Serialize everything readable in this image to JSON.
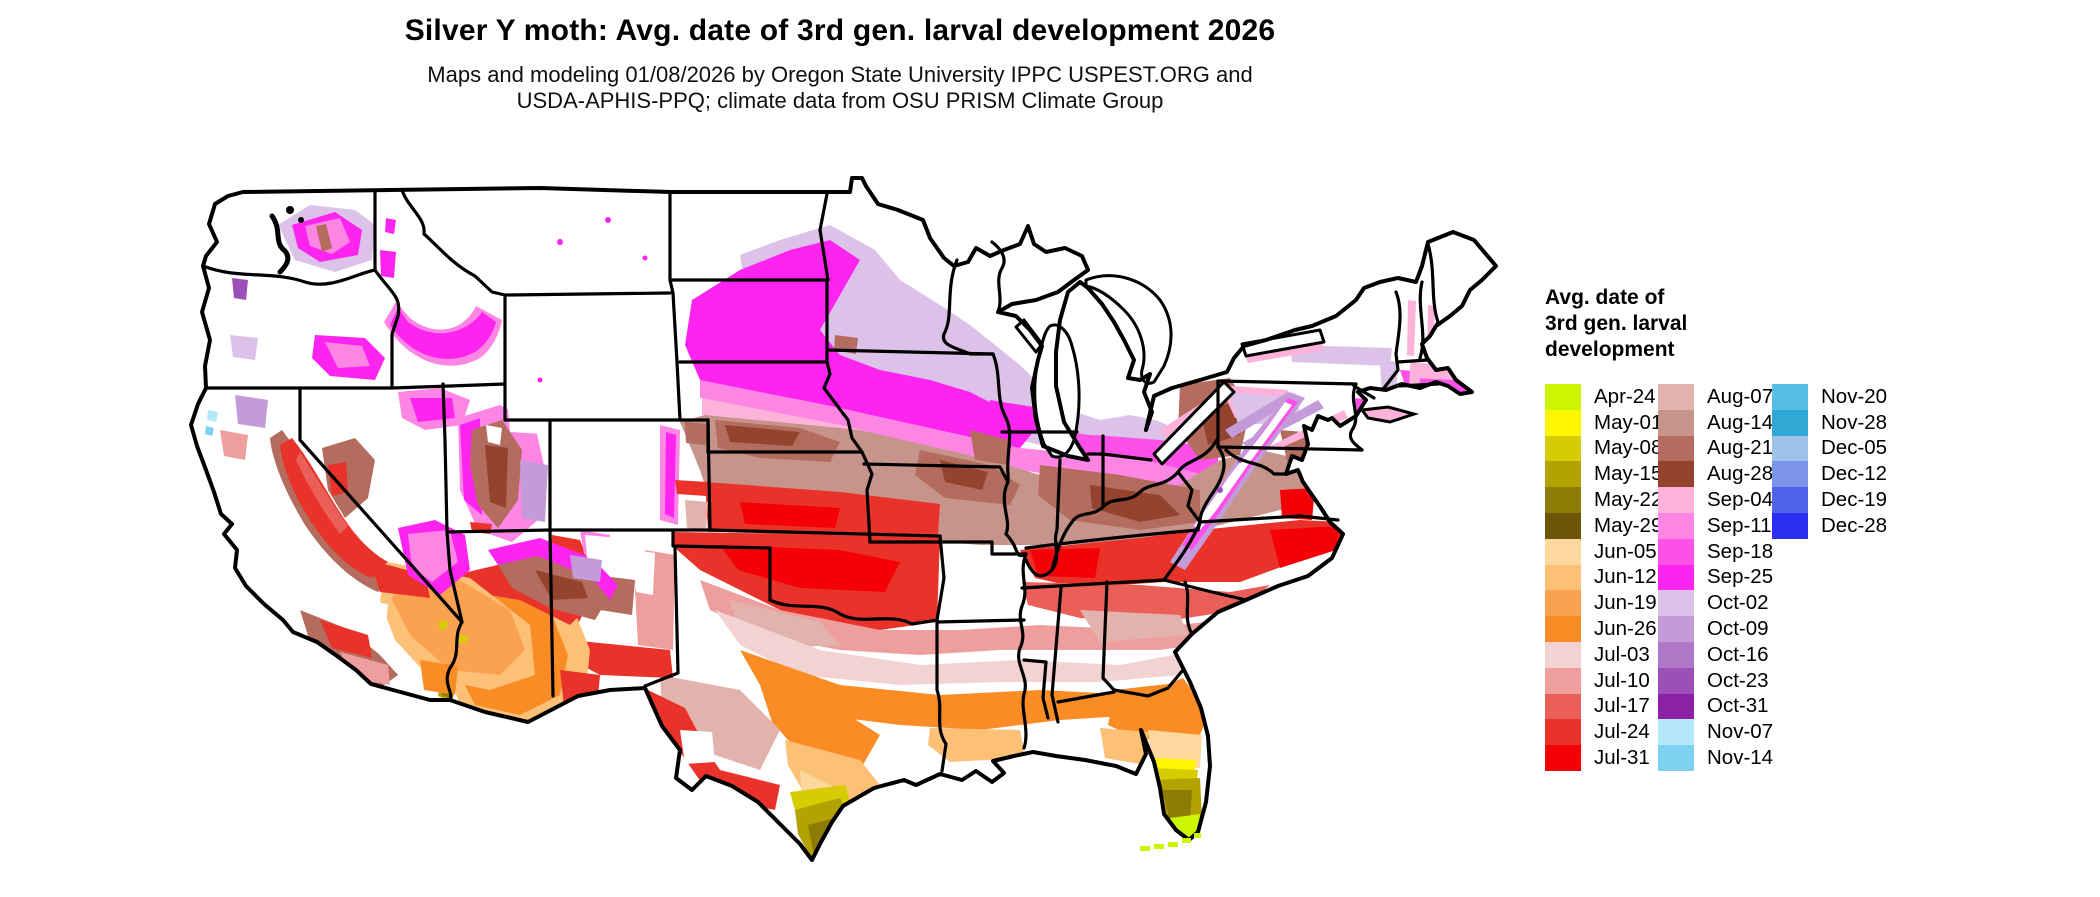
{
  "header": {
    "title": "Silver Y moth: Avg. date of 3rd gen. larval development 2026",
    "subtitle_line1": "Maps and modeling 01/08/2026 by Oregon State University IPPC USPEST.ORG and",
    "subtitle_line2": "USDA-APHIS-PPQ; climate data from OSU PRISM Climate Group"
  },
  "map": {
    "kind": "choropleth raster map",
    "region": "contiguous United States",
    "variable": "Avg. date of 3rd gen. larval development"
  },
  "legend": {
    "title_lines": [
      "Avg. date of",
      "3rd gen. larval",
      "development"
    ],
    "columns": [
      {
        "entries": [
          {
            "label": "Apr-24",
            "color": "#ccf501"
          },
          {
            "label": "May-01",
            "color": "#fdf601"
          },
          {
            "label": "May-08",
            "color": "#d6cc01"
          },
          {
            "label": "May-15",
            "color": "#b3a201"
          },
          {
            "label": "May-22",
            "color": "#8d7c04"
          },
          {
            "label": "May-29",
            "color": "#6d5607"
          },
          {
            "label": "Jun-05",
            "color": "#fcd79e"
          },
          {
            "label": "Jun-12",
            "color": "#fcc077"
          },
          {
            "label": "Jun-19",
            "color": "#fba250"
          },
          {
            "label": "Jun-26",
            "color": "#fa8c26"
          },
          {
            "label": "Jul-03",
            "color": "#f3d2d2"
          },
          {
            "label": "Jul-10",
            "color": "#ee9e9d"
          },
          {
            "label": "Jul-17",
            "color": "#ea5f58"
          },
          {
            "label": "Jul-24",
            "color": "#e9322a"
          },
          {
            "label": "Jul-31",
            "color": "#f60007"
          }
        ]
      },
      {
        "entries": [
          {
            "label": "Aug-07",
            "color": "#e2b3ac"
          },
          {
            "label": "Aug-14",
            "color": "#c6948a"
          },
          {
            "label": "Aug-21",
            "color": "#b36c5e"
          },
          {
            "label": "Aug-28",
            "color": "#94432f"
          },
          {
            "label": "Sep-04",
            "color": "#fdb3d9"
          },
          {
            "label": "Sep-11",
            "color": "#fd85e3"
          },
          {
            "label": "Sep-18",
            "color": "#fd50e8"
          },
          {
            "label": "Sep-25",
            "color": "#fd24f0"
          },
          {
            "label": "Oct-02",
            "color": "#dcc2e8"
          },
          {
            "label": "Oct-09",
            "color": "#c49bd9"
          },
          {
            "label": "Oct-16",
            "color": "#b077c7"
          },
          {
            "label": "Oct-23",
            "color": "#9c50b7"
          },
          {
            "label": "Oct-31",
            "color": "#8b22a5"
          },
          {
            "label": "Nov-07",
            "color": "#b5e8fa"
          },
          {
            "label": "Nov-14",
            "color": "#7fd1f1"
          }
        ]
      },
      {
        "entries": [
          {
            "label": "Nov-20",
            "color": "#56bde4"
          },
          {
            "label": "Nov-28",
            "color": "#2fa8d5"
          },
          {
            "label": "Dec-05",
            "color": "#9fc3e8"
          },
          {
            "label": "Dec-12",
            "color": "#7b93e8"
          },
          {
            "label": "Dec-19",
            "color": "#4f63ed"
          },
          {
            "label": "Dec-28",
            "color": "#2a2ff2"
          }
        ]
      }
    ]
  }
}
